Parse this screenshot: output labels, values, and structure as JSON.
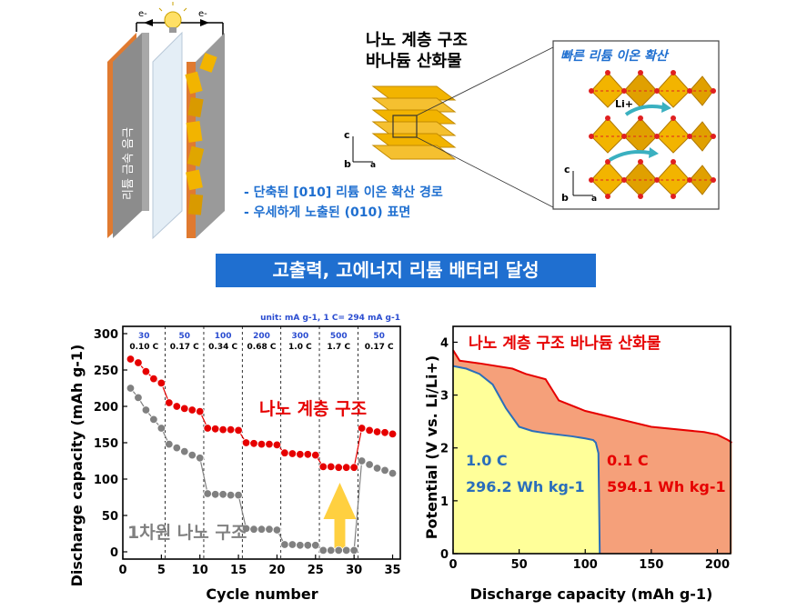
{
  "top": {
    "battery": {
      "anode_label": "리튬 금속 음극",
      "electron_label": "e-"
    },
    "vanadium_title_line1": "나노 계층 구조",
    "vanadium_title_line2": "바나듐 산화물",
    "axes": {
      "c": "c",
      "b": "b",
      "a": "a"
    },
    "inset_title": "빠른 리튬 이온 확산",
    "li_label": "Li+",
    "features": [
      "- 단축된 [010] 리튬 이온 확산 경로",
      "- 우세하게 노출된 (010) 표면"
    ],
    "colors": {
      "crystal": "#f2b400",
      "oxygen": "#e02020",
      "accent_blue": "#1f6fd0",
      "arrow": "#3ab0c0"
    }
  },
  "banner": "고출력, 고에너지 리튬 배터리 달성",
  "chart_data": [
    {
      "type": "scatter",
      "title": "",
      "xlabel": "Cycle number",
      "ylabel": "Discharge capacity (mAh g-1)",
      "xlim": [
        0,
        36
      ],
      "ylim": [
        -10,
        310
      ],
      "xticks": [
        0,
        5,
        10,
        15,
        20,
        25,
        30,
        35
      ],
      "yticks": [
        0,
        50,
        100,
        150,
        200,
        250,
        300
      ],
      "unit_note": "unit: mA g-1, 1 C= 294  mA g-1",
      "rates": [
        {
          "current": "30",
          "crate": "0.10 C"
        },
        {
          "current": "50",
          "crate": "0.17 C"
        },
        {
          "current": "100",
          "crate": "0.34 C"
        },
        {
          "current": "200",
          "crate": "0.68 C"
        },
        {
          "current": "300",
          "crate": "1.0 C"
        },
        {
          "current": "500",
          "crate": "1.7 C"
        },
        {
          "current": "50",
          "crate": "0.17 C"
        }
      ],
      "series": [
        {
          "name": "나노 계층 구조",
          "color": "#e60000",
          "x": [
            1,
            2,
            3,
            4,
            5,
            6,
            7,
            8,
            9,
            10,
            11,
            12,
            13,
            14,
            15,
            16,
            17,
            18,
            19,
            20,
            21,
            22,
            23,
            24,
            25,
            26,
            27,
            28,
            29,
            30,
            31,
            32,
            33,
            34,
            35
          ],
          "values": [
            265,
            260,
            248,
            238,
            232,
            205,
            200,
            197,
            195,
            193,
            170,
            169,
            168,
            168,
            167,
            150,
            149,
            148,
            148,
            147,
            136,
            135,
            134,
            134,
            133,
            117,
            117,
            116,
            116,
            116,
            170,
            167,
            165,
            164,
            162
          ]
        },
        {
          "name": "1차원 나노 구조",
          "color": "#808080",
          "x": [
            1,
            2,
            3,
            4,
            5,
            6,
            7,
            8,
            9,
            10,
            11,
            12,
            13,
            14,
            15,
            16,
            17,
            18,
            19,
            20,
            21,
            22,
            23,
            24,
            25,
            26,
            27,
            28,
            29,
            30,
            31,
            32,
            33,
            34,
            35
          ],
          "values": [
            225,
            212,
            195,
            182,
            170,
            148,
            143,
            138,
            133,
            129,
            80,
            79,
            79,
            78,
            78,
            32,
            31,
            31,
            31,
            30,
            10,
            10,
            9,
            9,
            9,
            2,
            2,
            2,
            2,
            2,
            125,
            120,
            115,
            112,
            108
          ]
        }
      ]
    },
    {
      "type": "area",
      "title": "나노 계층 구조 바나듐 산화물",
      "xlabel": "Discharge capacity (mAh g-1)",
      "ylabel": "Potential (V vs. Li/Li+)",
      "xlim": [
        0,
        210
      ],
      "ylim": [
        0,
        4.3
      ],
      "xticks": [
        0,
        50,
        100,
        150,
        200
      ],
      "yticks": [
        0,
        1,
        2,
        3,
        4
      ],
      "series": [
        {
          "name": "1.0 C",
          "energy": "296.2 Wh kg-1",
          "color": "#2a6ebb",
          "fill": "#ffff99",
          "x": [
            0,
            10,
            20,
            30,
            40,
            50,
            60,
            70,
            80,
            90,
            100,
            106,
            108,
            110,
            111
          ],
          "values": [
            3.55,
            3.5,
            3.4,
            3.2,
            2.75,
            2.4,
            2.32,
            2.28,
            2.25,
            2.22,
            2.18,
            2.15,
            2.1,
            1.9,
            0
          ]
        },
        {
          "name": "0.1 C",
          "energy": "594.1 Wh kg-1",
          "color": "#e60000",
          "fill": "#f5a07a",
          "x": [
            0,
            5,
            20,
            45,
            55,
            70,
            75,
            80,
            100,
            150,
            190,
            200,
            208,
            211
          ],
          "values": [
            3.85,
            3.65,
            3.6,
            3.5,
            3.4,
            3.3,
            3.1,
            2.9,
            2.7,
            2.4,
            2.3,
            2.25,
            2.15,
            2.1
          ]
        }
      ]
    }
  ]
}
